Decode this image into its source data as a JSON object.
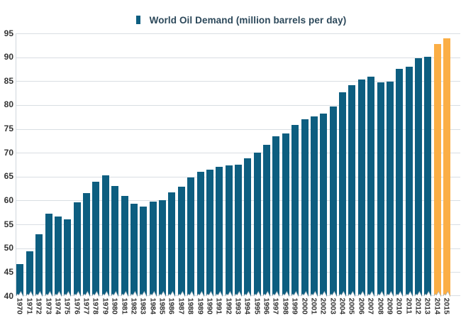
{
  "legend": {
    "label": "World Oil Demand (million barrels per day)"
  },
  "colors": {
    "bar": "#0D5E80",
    "highlight": "#FBAE45",
    "grid": "#D9DEE3",
    "axis_line": "#CFD6DC",
    "tick_label": "#333333",
    "legend_text": "#2C485A",
    "background": "#FFFFFF"
  },
  "chart_data": {
    "type": "bar",
    "title": "World Oil Demand (million barrels per day)",
    "xlabel": "",
    "ylabel": "",
    "x": [
      1970,
      1971,
      1972,
      1973,
      1974,
      1975,
      1976,
      1977,
      1978,
      1979,
      1980,
      1981,
      1982,
      1983,
      1984,
      1985,
      1986,
      1987,
      1988,
      1989,
      1990,
      1991,
      1992,
      1993,
      1994,
      1995,
      1996,
      1997,
      1998,
      1999,
      2000,
      2001,
      2002,
      2003,
      2004,
      2005,
      2006,
      2007,
      2008,
      2009,
      2010,
      2011,
      2012,
      2013,
      2014,
      2015
    ],
    "values": [
      46.7,
      49.3,
      53.0,
      57.2,
      56.6,
      56.1,
      59.6,
      61.6,
      64.0,
      65.2,
      63.0,
      60.9,
      59.4,
      58.7,
      59.7,
      60.0,
      61.7,
      62.9,
      64.9,
      66.0,
      66.5,
      67.0,
      67.3,
      67.5,
      68.8,
      70.0,
      71.6,
      73.4,
      74.0,
      75.8,
      77.0,
      77.6,
      78.2,
      79.7,
      82.6,
      84.1,
      85.3,
      85.9,
      84.7,
      84.9,
      87.5,
      88.0,
      89.8,
      90.1,
      92.7,
      93.9
    ],
    "ylim": [
      40,
      95
    ],
    "ytick_step": 5,
    "grid": true,
    "legend_position": "top",
    "highlight_years": [
      2014,
      2015
    ],
    "axis_break_at_base": true
  }
}
